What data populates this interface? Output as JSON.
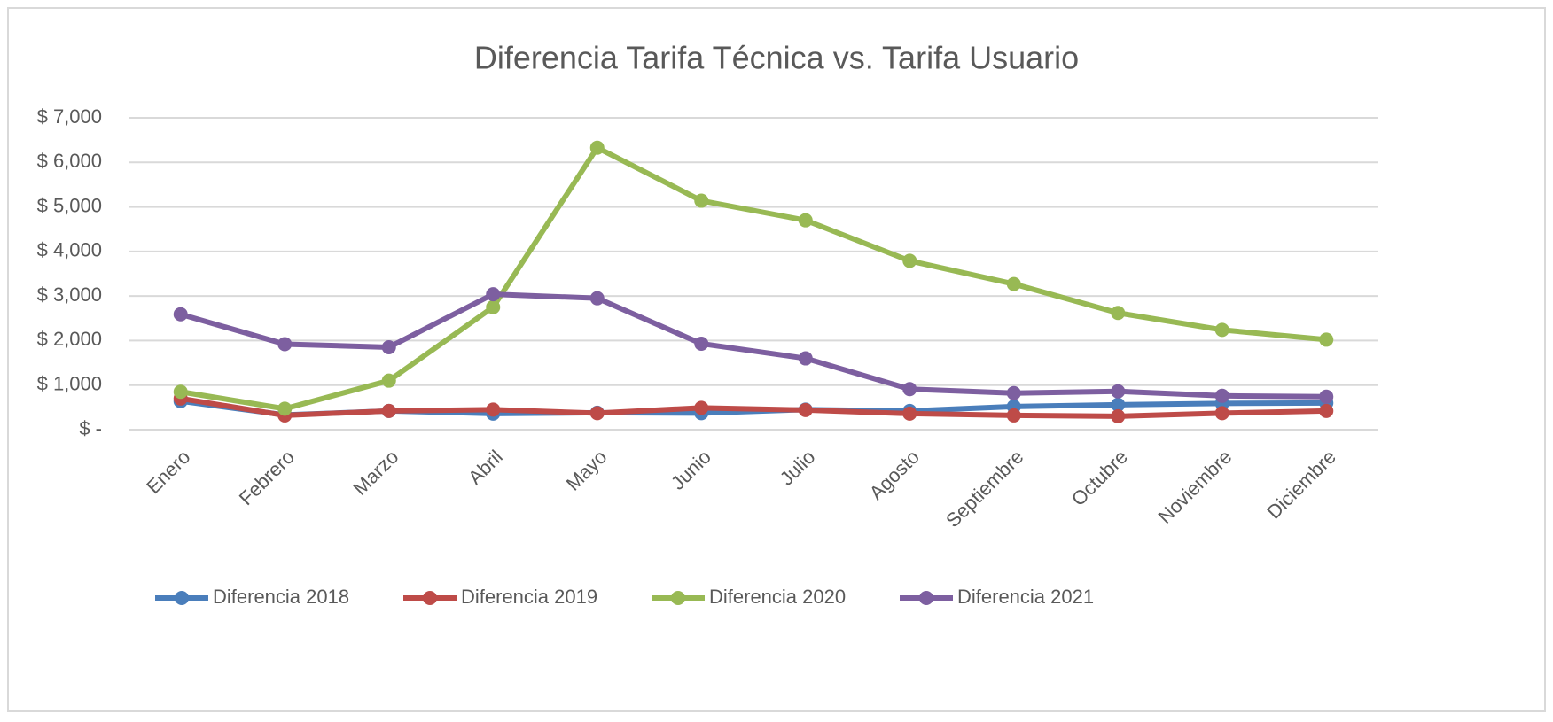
{
  "chart_data": {
    "type": "line",
    "title": "Diferencia Tarifa Técnica vs. Tarifa Usuario",
    "categories": [
      "Enero",
      "Febrero",
      "Marzo",
      "Abril",
      "Mayo",
      "Junio",
      "Julio",
      "Agosto",
      "Septiembre",
      "Octubre",
      "Noviembre",
      "Diciembre"
    ],
    "series": [
      {
        "name": "Diferencia 2018",
        "color": "#4a7ebb",
        "values": [
          640,
          330,
          420,
          360,
          380,
          370,
          450,
          420,
          520,
          560,
          590,
          600
        ]
      },
      {
        "name": "Diferencia 2019",
        "color": "#be4b48",
        "values": [
          700,
          320,
          420,
          450,
          370,
          490,
          440,
          360,
          320,
          300,
          370,
          420
        ]
      },
      {
        "name": "Diferencia 2020",
        "color": "#98b954",
        "values": [
          850,
          470,
          1100,
          2750,
          6330,
          5140,
          4700,
          3790,
          3270,
          2620,
          2240,
          2020
        ]
      },
      {
        "name": "Diferencia 2021",
        "color": "#7d5fa0",
        "values": [
          2590,
          1920,
          1850,
          3040,
          2950,
          1930,
          1600,
          910,
          820,
          860,
          760,
          740
        ]
      }
    ],
    "ylim": [
      0,
      7000
    ],
    "yticks": [
      {
        "value": 0,
        "label": "$ -"
      },
      {
        "value": 1000,
        "label": "$ 1,000"
      },
      {
        "value": 2000,
        "label": "$ 2,000"
      },
      {
        "value": 3000,
        "label": "$ 3,000"
      },
      {
        "value": 4000,
        "label": "$ 4,000"
      },
      {
        "value": 5000,
        "label": "$ 5,000"
      },
      {
        "value": 6000,
        "label": "$ 6,000"
      },
      {
        "value": 7000,
        "label": "$ 7,000"
      }
    ],
    "grid": true,
    "legend": "bottom"
  }
}
